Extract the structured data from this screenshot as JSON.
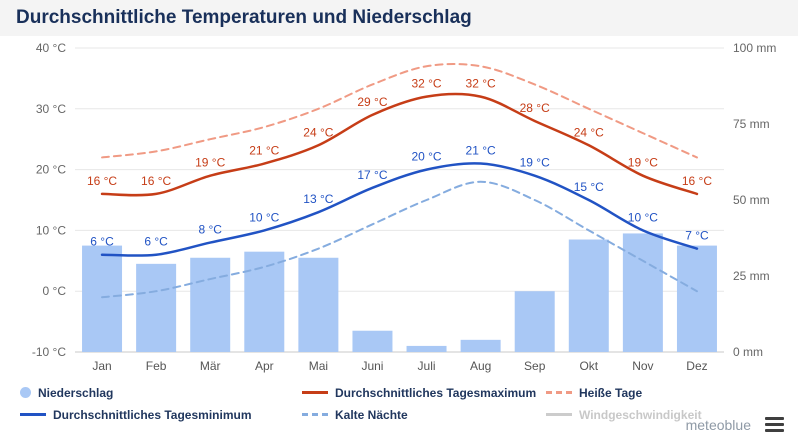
{
  "header": {
    "title": "Durchschnittliche Temperaturen und Niederschlag"
  },
  "chart_data": {
    "type": "mixed",
    "title": "Durchschnittliche Temperaturen und Niederschlag",
    "categories": [
      "Jan",
      "Feb",
      "Mär",
      "Apr",
      "Mai",
      "Juni",
      "Juli",
      "Aug",
      "Sep",
      "Okt",
      "Nov",
      "Dez"
    ],
    "y_left": {
      "min": -10,
      "max": 40,
      "unit": "°C",
      "ticks": [
        {
          "value": 40,
          "label": "40 °C"
        },
        {
          "value": 30,
          "label": "30 °C"
        },
        {
          "value": 20,
          "label": "20 °C"
        },
        {
          "value": 10,
          "label": "10 °C"
        },
        {
          "value": 0,
          "label": "0 °C"
        },
        {
          "value": -10,
          "label": "-10 °C"
        }
      ]
    },
    "y_right": {
      "min": 0,
      "max": 100,
      "unit": "mm",
      "ticks": [
        {
          "value": 100,
          "label": "100 mm"
        },
        {
          "value": 75,
          "label": "75 mm"
        },
        {
          "value": 50,
          "label": "50 mm"
        },
        {
          "value": 25,
          "label": "25 mm"
        },
        {
          "value": 0,
          "label": "0 mm"
        }
      ]
    },
    "series": [
      {
        "id": "precipitation",
        "name": "Niederschlag",
        "type": "bar",
        "unit": "mm",
        "color": "#a9c8f5",
        "values": [
          35,
          29,
          31,
          33,
          31,
          7,
          2,
          4,
          20,
          37,
          39,
          35
        ]
      },
      {
        "id": "hot-days",
        "name": "Heiße Tage",
        "type": "line",
        "dashed": true,
        "unit": "°C",
        "color": "#f09a84",
        "values": [
          22,
          23,
          25,
          27,
          30,
          34,
          37,
          37,
          34,
          30,
          26,
          22
        ]
      },
      {
        "id": "cold-nights",
        "name": "Kalte Nächte",
        "type": "line",
        "dashed": true,
        "unit": "°C",
        "color": "#85acdf",
        "values": [
          -1,
          0,
          2,
          4,
          7,
          11,
          15,
          18,
          15,
          10,
          5,
          0
        ]
      },
      {
        "id": "tmax",
        "name": "Durchschnittliches Tagesmaximum",
        "type": "line",
        "unit": "°C",
        "color": "#c63d17",
        "values": [
          16,
          16,
          19,
          21,
          24,
          29,
          32,
          32,
          28,
          24,
          19,
          16
        ],
        "labels": [
          "16 °C",
          "16 °C",
          "19 °C",
          "21 °C",
          "24 °C",
          "29 °C",
          "32 °C",
          "32 °C",
          "28 °C",
          "24 °C",
          "19 °C",
          "16 °C"
        ]
      },
      {
        "id": "tmin",
        "name": "Durchschnittliches Tagesminimum",
        "type": "line",
        "unit": "°C",
        "color": "#2153c4",
        "values": [
          6,
          6,
          8,
          10,
          13,
          17,
          20,
          21,
          19,
          15,
          10,
          7
        ],
        "labels": [
          "6 °C",
          "6 °C",
          "8 °C",
          "10 °C",
          "13 °C",
          "17 °C",
          "20 °C",
          "21 °C",
          "19 °C",
          "15 °C",
          "10 °C",
          "7 °C"
        ]
      }
    ],
    "grid": true,
    "legend_position": "bottom"
  },
  "legend": {
    "items": [
      {
        "label": "Niederschlag",
        "marker": "dot",
        "color": "#a9c8f5",
        "disabled": false
      },
      {
        "label": "Durchschnittliches Tagesmaximum",
        "marker": "line",
        "color": "#c63d17",
        "disabled": false
      },
      {
        "label": "Heiße Tage",
        "marker": "dashed",
        "color": "#f09a84",
        "disabled": false
      },
      {
        "label": "Durchschnittliches Tagesminimum",
        "marker": "line",
        "color": "#2153c4",
        "disabled": false
      },
      {
        "label": "Kalte Nächte",
        "marker": "dashed",
        "color": "#85acdf",
        "disabled": false
      },
      {
        "label": "Windgeschwindigkeit",
        "marker": "line",
        "color": "#cccccc",
        "disabled": true
      }
    ]
  },
  "footer": {
    "brand": "meteoblue",
    "menu_icon": "hamburger-icon"
  }
}
